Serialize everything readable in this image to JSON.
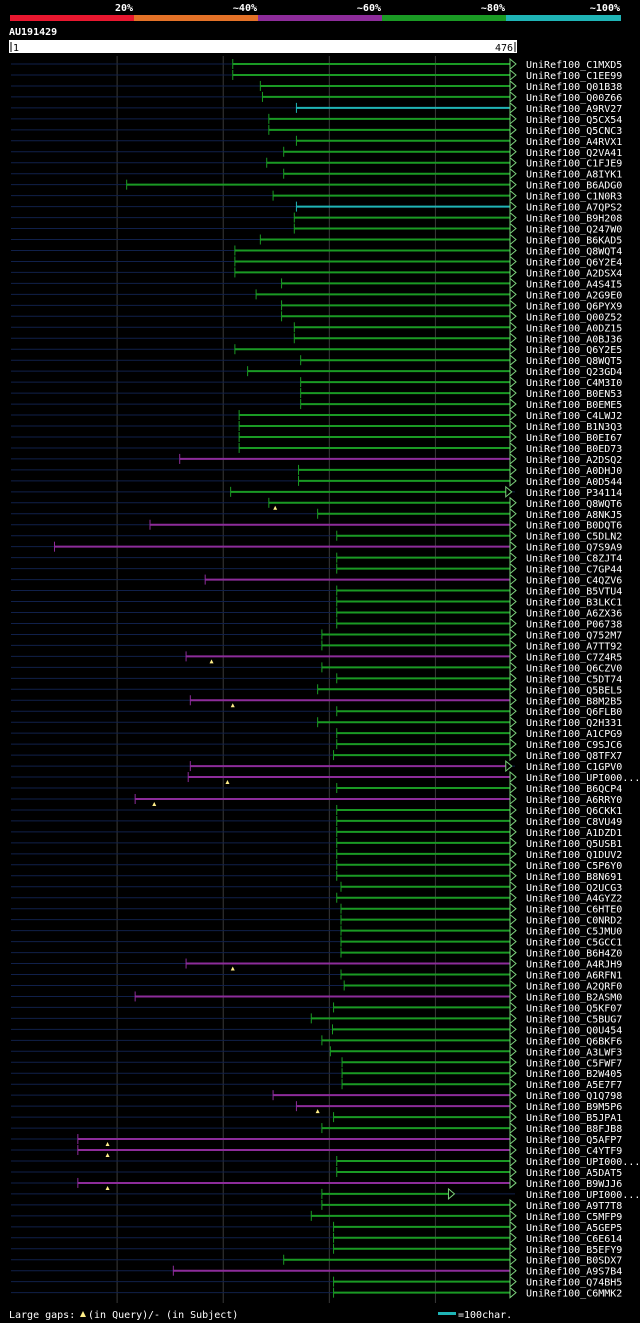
{
  "header": {
    "legend_scale": [
      {
        "label": "20%",
        "color": "#e8172f"
      },
      {
        "label": "~40%",
        "color": "#e37127"
      },
      {
        "label": "~60%",
        "color": "#8d2c9a"
      },
      {
        "label": "~80%",
        "color": "#1a9a24"
      },
      {
        "label": "~100%",
        "color": "#1fb4b6"
      }
    ],
    "query_id": "AU191429",
    "ruler_start": "1",
    "ruler_end": "476"
  },
  "footer": {
    "gaps_label": "Large gaps:",
    "query_gap": "(in Query)",
    "subject_gap": "/- (in Subject)",
    "scale_label": "=100char."
  },
  "colors": {
    "green": "#1a9a24",
    "purple": "#8d2c9a",
    "cyan": "#1fb4b6",
    "dark_line": "#10204a",
    "arrow_fill": "#7ad07a",
    "marker": "#ffee88",
    "grid": "#3a3a3a"
  },
  "chart_data": {
    "type": "alignment",
    "query_length": 476,
    "hits": [
      {
        "name": "UniRef100_C1MXD5",
        "start": 210,
        "end": 476,
        "color": "green"
      },
      {
        "name": "UniRef100_C1EE99",
        "start": 210,
        "end": 476,
        "color": "green"
      },
      {
        "name": "UniRef100_Q01B38",
        "start": 236,
        "end": 476,
        "color": "green"
      },
      {
        "name": "UniRef100_Q00Z66",
        "start": 238,
        "end": 476,
        "color": "green"
      },
      {
        "name": "UniRef100_A9RV27",
        "start": 270,
        "end": 476,
        "color": "cyan"
      },
      {
        "name": "UniRef100_Q5CX54",
        "start": 244,
        "end": 476,
        "color": "green"
      },
      {
        "name": "UniRef100_Q5CNC3",
        "start": 244,
        "end": 476,
        "color": "green"
      },
      {
        "name": "UniRef100_A4RVX1",
        "start": 270,
        "end": 476,
        "color": "green"
      },
      {
        "name": "UniRef100_Q2VA41",
        "start": 258,
        "end": 476,
        "color": "green"
      },
      {
        "name": "UniRef100_C1FJE9",
        "start": 242,
        "end": 476,
        "color": "green"
      },
      {
        "name": "UniRef100_A8IYK1",
        "start": 258,
        "end": 476,
        "color": "green"
      },
      {
        "name": "UniRef100_B6ADG0",
        "start": 110,
        "end": 476,
        "color": "green"
      },
      {
        "name": "UniRef100_C1N0R3",
        "start": 248,
        "end": 476,
        "color": "green"
      },
      {
        "name": "UniRef100_A7QPS2",
        "start": 270,
        "end": 476,
        "color": "cyan"
      },
      {
        "name": "UniRef100_B9H208",
        "start": 268,
        "end": 476,
        "color": "green"
      },
      {
        "name": "UniRef100_Q247W0",
        "start": 268,
        "end": 476,
        "color": "green"
      },
      {
        "name": "UniRef100_B6KAD5",
        "start": 236,
        "end": 476,
        "color": "green"
      },
      {
        "name": "UniRef100_Q8WQT4",
        "start": 212,
        "end": 476,
        "color": "green"
      },
      {
        "name": "UniRef100_Q6Y2E4",
        "start": 212,
        "end": 476,
        "color": "green"
      },
      {
        "name": "UniRef100_A2DSX4",
        "start": 212,
        "end": 476,
        "color": "green"
      },
      {
        "name": "UniRef100_A4S4I5",
        "start": 256,
        "end": 476,
        "color": "green"
      },
      {
        "name": "UniRef100_A2G9E0",
        "start": 232,
        "end": 476,
        "color": "green"
      },
      {
        "name": "UniRef100_Q6PYX9",
        "start": 256,
        "end": 476,
        "color": "green"
      },
      {
        "name": "UniRef100_Q00Z52",
        "start": 256,
        "end": 476,
        "color": "green"
      },
      {
        "name": "UniRef100_A0DZ15",
        "start": 268,
        "end": 476,
        "color": "green"
      },
      {
        "name": "UniRef100_A0BJ36",
        "start": 268,
        "end": 476,
        "color": "green"
      },
      {
        "name": "UniRef100_Q6Y2E5",
        "start": 212,
        "end": 476,
        "color": "green"
      },
      {
        "name": "UniRef100_Q8WQT5",
        "start": 274,
        "end": 476,
        "color": "green"
      },
      {
        "name": "UniRef100_Q23GD4",
        "start": 224,
        "end": 476,
        "color": "green"
      },
      {
        "name": "UniRef100_C4M3I0",
        "start": 274,
        "end": 476,
        "color": "green"
      },
      {
        "name": "UniRef100_B0EN53",
        "start": 274,
        "end": 476,
        "color": "green"
      },
      {
        "name": "UniRef100_B0EME5",
        "start": 274,
        "end": 476,
        "color": "green"
      },
      {
        "name": "UniRef100_C4LWJ2",
        "start": 216,
        "end": 476,
        "color": "green"
      },
      {
        "name": "UniRef100_B1N3Q3",
        "start": 216,
        "end": 476,
        "color": "green"
      },
      {
        "name": "UniRef100_B0EI67",
        "start": 216,
        "end": 476,
        "color": "green"
      },
      {
        "name": "UniRef100_B0ED73",
        "start": 216,
        "end": 476,
        "color": "green"
      },
      {
        "name": "UniRef100_A2DSQ2",
        "start": 160,
        "end": 476,
        "color": "purple"
      },
      {
        "name": "UniRef100_A0DHJ0",
        "start": 272,
        "end": 476,
        "color": "green"
      },
      {
        "name": "UniRef100_A0D544",
        "start": 272,
        "end": 476,
        "color": "green"
      },
      {
        "name": "UniRef100_P34114",
        "start": 208,
        "end": 472,
        "color": "green"
      },
      {
        "name": "UniRef100_Q8WQT6",
        "start": 244,
        "end": 476,
        "color": "green",
        "marker": 250
      },
      {
        "name": "UniRef100_A8NKJ5",
        "start": 290,
        "end": 476,
        "color": "green"
      },
      {
        "name": "UniRef100_B0DQT6",
        "start": 132,
        "end": 476,
        "color": "purple"
      },
      {
        "name": "UniRef100_C5DLN2",
        "start": 308,
        "end": 476,
        "color": "green"
      },
      {
        "name": "UniRef100_Q7S9A9",
        "start": 42,
        "end": 476,
        "color": "purple"
      },
      {
        "name": "UniRef100_C8ZJT4",
        "start": 308,
        "end": 476,
        "color": "green"
      },
      {
        "name": "UniRef100_C7GP44",
        "start": 308,
        "end": 476,
        "color": "green"
      },
      {
        "name": "UniRef100_C4QZV6",
        "start": 184,
        "end": 476,
        "color": "purple"
      },
      {
        "name": "UniRef100_B5VTU4",
        "start": 308,
        "end": 476,
        "color": "green"
      },
      {
        "name": "UniRef100_B3LKC1",
        "start": 308,
        "end": 476,
        "color": "green"
      },
      {
        "name": "UniRef100_A6ZX36",
        "start": 308,
        "end": 476,
        "color": "green"
      },
      {
        "name": "UniRef100_P06738",
        "start": 308,
        "end": 476,
        "color": "green"
      },
      {
        "name": "UniRef100_Q752M7",
        "start": 294,
        "end": 476,
        "color": "green"
      },
      {
        "name": "UniRef100_A7TT92",
        "start": 294,
        "end": 476,
        "color": "green"
      },
      {
        "name": "UniRef100_C7Z4R5",
        "start": 166,
        "end": 476,
        "color": "purple",
        "marker": 190
      },
      {
        "name": "UniRef100_Q6CZV0",
        "start": 294,
        "end": 476,
        "color": "green"
      },
      {
        "name": "UniRef100_C5DT74",
        "start": 308,
        "end": 476,
        "color": "green"
      },
      {
        "name": "UniRef100_Q5BEL5",
        "start": 290,
        "end": 476,
        "color": "green"
      },
      {
        "name": "UniRef100_B8M2B5",
        "start": 170,
        "end": 476,
        "color": "purple",
        "marker": 210
      },
      {
        "name": "UniRef100_Q6FLB0",
        "start": 308,
        "end": 476,
        "color": "green"
      },
      {
        "name": "UniRef100_Q2H331",
        "start": 290,
        "end": 476,
        "color": "green"
      },
      {
        "name": "UniRef100_A1CPG9",
        "start": 308,
        "end": 476,
        "color": "green"
      },
      {
        "name": "UniRef100_C9SJC6",
        "start": 308,
        "end": 476,
        "color": "green"
      },
      {
        "name": "UniRef100_Q8TFX7",
        "start": 305,
        "end": 476,
        "color": "green"
      },
      {
        "name": "UniRef100_C1GPV0",
        "start": 170,
        "end": 472,
        "color": "purple"
      },
      {
        "name": "UniRef100_UPI000...",
        "start": 168,
        "end": 476,
        "color": "purple",
        "marker": 205
      },
      {
        "name": "UniRef100_B6QCP4",
        "start": 308,
        "end": 476,
        "color": "green"
      },
      {
        "name": "UniRef100_A6RRY0",
        "start": 118,
        "end": 476,
        "color": "purple",
        "marker": 136
      },
      {
        "name": "UniRef100_Q6CKK1",
        "start": 308,
        "end": 476,
        "color": "green"
      },
      {
        "name": "UniRef100_C8VU49",
        "start": 308,
        "end": 476,
        "color": "green"
      },
      {
        "name": "UniRef100_A1DZD1",
        "start": 308,
        "end": 476,
        "color": "green"
      },
      {
        "name": "UniRef100_Q5USB1",
        "start": 308,
        "end": 476,
        "color": "green"
      },
      {
        "name": "UniRef100_Q1DUV2",
        "start": 308,
        "end": 476,
        "color": "green"
      },
      {
        "name": "UniRef100_C5P6Y0",
        "start": 308,
        "end": 476,
        "color": "green"
      },
      {
        "name": "UniRef100_B8N691",
        "start": 308,
        "end": 476,
        "color": "green"
      },
      {
        "name": "UniRef100_Q2UCG3",
        "start": 312,
        "end": 476,
        "color": "green"
      },
      {
        "name": "UniRef100_A4GYZ2",
        "start": 308,
        "end": 476,
        "color": "green"
      },
      {
        "name": "UniRef100_C6HTE0",
        "start": 312,
        "end": 476,
        "color": "green"
      },
      {
        "name": "UniRef100_C0NRD2",
        "start": 312,
        "end": 476,
        "color": "green"
      },
      {
        "name": "UniRef100_C5JMU0",
        "start": 312,
        "end": 476,
        "color": "green"
      },
      {
        "name": "UniRef100_C5GCC1",
        "start": 312,
        "end": 476,
        "color": "green"
      },
      {
        "name": "UniRef100_B6H4Z0",
        "start": 312,
        "end": 476,
        "color": "green"
      },
      {
        "name": "UniRef100_A4RJH9",
        "start": 166,
        "end": 476,
        "color": "purple",
        "marker": 210
      },
      {
        "name": "UniRef100_A6RFN1",
        "start": 312,
        "end": 476,
        "color": "green"
      },
      {
        "name": "UniRef100_A2QRF0",
        "start": 315,
        "end": 476,
        "color": "green"
      },
      {
        "name": "UniRef100_B2ASM0",
        "start": 118,
        "end": 476,
        "color": "purple"
      },
      {
        "name": "UniRef100_Q5KF07",
        "start": 305,
        "end": 476,
        "color": "green"
      },
      {
        "name": "UniRef100_C5BUG7",
        "start": 284,
        "end": 476,
        "color": "green"
      },
      {
        "name": "UniRef100_Q0U454",
        "start": 304,
        "end": 476,
        "color": "green"
      },
      {
        "name": "UniRef100_Q6BKF6",
        "start": 294,
        "end": 476,
        "color": "green"
      },
      {
        "name": "UniRef100_A3LWF3",
        "start": 302,
        "end": 476,
        "color": "green"
      },
      {
        "name": "UniRef100_C5FWF7",
        "start": 313,
        "end": 476,
        "color": "green"
      },
      {
        "name": "UniRef100_B2W405",
        "start": 313,
        "end": 476,
        "color": "green"
      },
      {
        "name": "UniRef100_A5E7F7",
        "start": 313,
        "end": 476,
        "color": "green"
      },
      {
        "name": "UniRef100_Q1Q798",
        "start": 248,
        "end": 476,
        "color": "purple"
      },
      {
        "name": "UniRef100_B9M5P6",
        "start": 270,
        "end": 476,
        "color": "purple",
        "marker": 290
      },
      {
        "name": "UniRef100_B5JPA1",
        "start": 305,
        "end": 476,
        "color": "green"
      },
      {
        "name": "UniRef100_B8FJB8",
        "start": 294,
        "end": 476,
        "color": "green"
      },
      {
        "name": "UniRef100_Q5AFP7",
        "start": 64,
        "end": 476,
        "color": "purple",
        "marker": 92
      },
      {
        "name": "UniRef100_C4YTF9",
        "start": 64,
        "end": 476,
        "color": "purple",
        "marker": 92
      },
      {
        "name": "UniRef100_UPI000...",
        "start": 308,
        "end": 476,
        "color": "green"
      },
      {
        "name": "UniRef100_A5DAT5",
        "start": 308,
        "end": 476,
        "color": "green"
      },
      {
        "name": "UniRef100_B9WJJ6",
        "start": 64,
        "end": 476,
        "color": "purple",
        "marker": 92
      },
      {
        "name": "UniRef100_UPI000...",
        "start": 294,
        "end": 418,
        "color": "green"
      },
      {
        "name": "UniRef100_A9T7T8",
        "start": 294,
        "end": 476,
        "color": "green"
      },
      {
        "name": "UniRef100_C5MFP9",
        "start": 284,
        "end": 476,
        "color": "green"
      },
      {
        "name": "UniRef100_A5GEP5",
        "start": 305,
        "end": 476,
        "color": "green"
      },
      {
        "name": "UniRef100_C6E614",
        "start": 305,
        "end": 476,
        "color": "green"
      },
      {
        "name": "UniRef100_B5EFY9",
        "start": 305,
        "end": 476,
        "color": "green"
      },
      {
        "name": "UniRef100_B0SDX7",
        "start": 258,
        "end": 476,
        "color": "green"
      },
      {
        "name": "UniRef100_A9S7B4",
        "start": 154,
        "end": 476,
        "color": "purple"
      },
      {
        "name": "UniRef100_Q74BH5",
        "start": 305,
        "end": 476,
        "color": "green"
      },
      {
        "name": "UniRef100_C6MMK2",
        "start": 305,
        "end": 476,
        "color": "green"
      }
    ]
  }
}
